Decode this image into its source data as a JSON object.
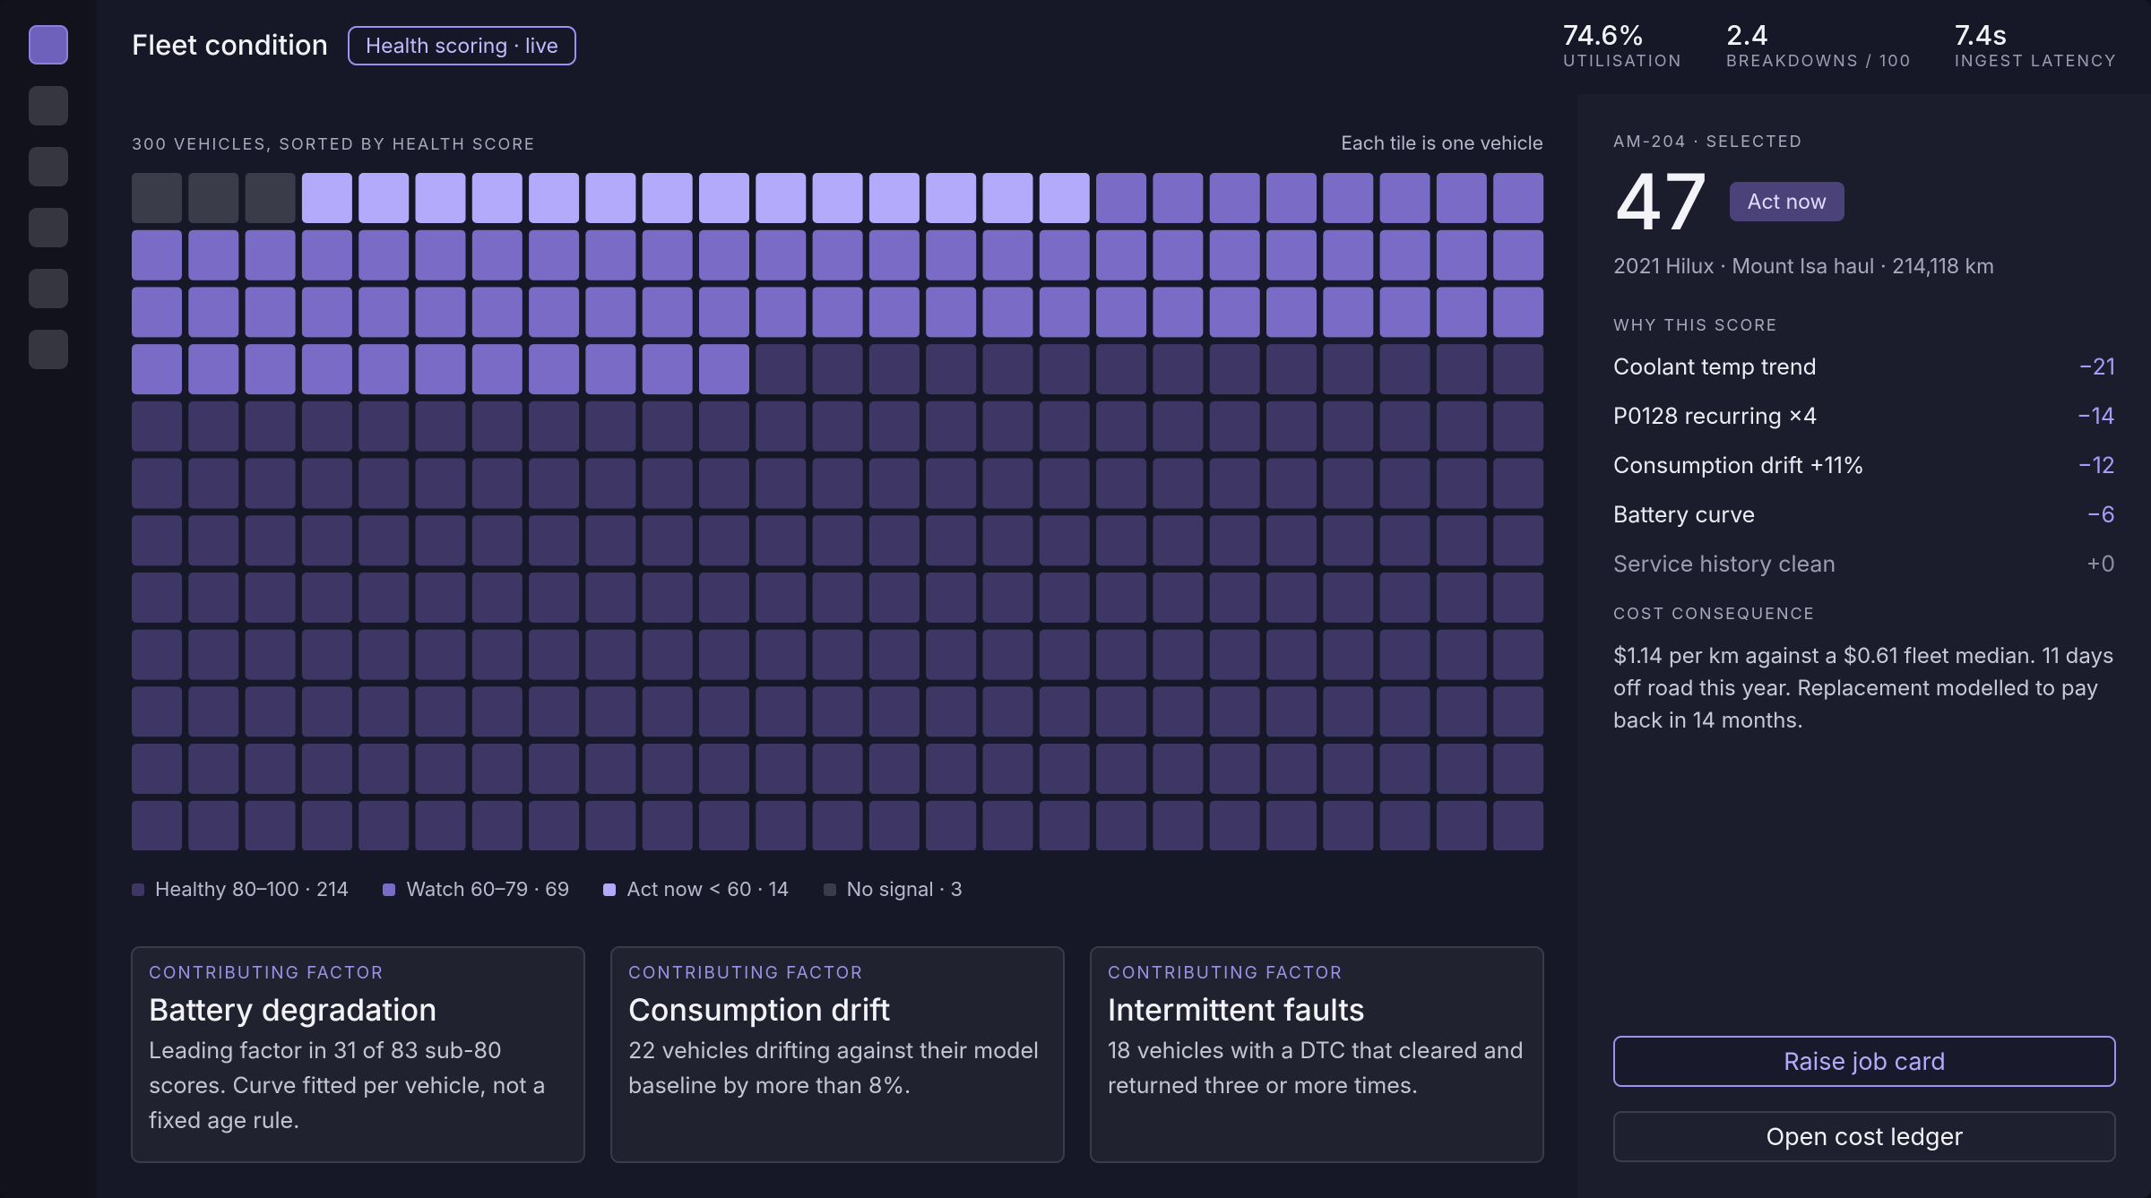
{
  "header": {
    "title": "Fleet condition",
    "badge": "Health scoring · live",
    "stats": [
      {
        "value": "74.6%",
        "label": "UTILISATION"
      },
      {
        "value": "2.4",
        "label": "BREAKDOWNS / 100"
      },
      {
        "value": "7.4s",
        "label": "INGEST LATENCY"
      }
    ]
  },
  "waffle": {
    "caption": "300 VEHICLES, SORTED BY HEALTH SCORE",
    "note": "Each tile is one vehicle",
    "columns": 25,
    "legend": [
      {
        "label": "Healthy 80–100 · 214",
        "count": 214,
        "color": "#3e3765"
      },
      {
        "label": "Watch 60–79 · 69",
        "count": 69,
        "color": "#7a6cc6"
      },
      {
        "label": "Act now < 60 · 14",
        "count": 14,
        "color": "#b4aafb"
      },
      {
        "label": "No signal · 3",
        "count": 3,
        "color": "#3b3c49"
      }
    ]
  },
  "cards": [
    {
      "kicker": "CONTRIBUTING FACTOR",
      "title": "Battery degradation",
      "body": "Leading factor in 31 of 83 sub-80 scores. Curve fitted per vehicle, not a fixed age rule."
    },
    {
      "kicker": "CONTRIBUTING FACTOR",
      "title": "Consumption drift",
      "body": "22 vehicles drifting against their model baseline by more than 8%."
    },
    {
      "kicker": "CONTRIBUTING FACTOR",
      "title": "Intermittent faults",
      "body": "18 vehicles with a DTC that cleared and returned three or more times."
    }
  ],
  "selected": {
    "label": "AM-204 · SELECTED",
    "score": 47,
    "badge": "Act now",
    "subtitle": "2021 Hilux · Mount Isa haul · 214,118 km",
    "why_heading": "WHY THIS SCORE",
    "factors": [
      {
        "name": "Coolant temp trend",
        "delta": "−21"
      },
      {
        "name": "P0128 recurring ×4",
        "delta": "−14"
      },
      {
        "name": "Consumption drift +11%",
        "delta": "−12"
      },
      {
        "name": "Battery curve",
        "delta": "−6"
      },
      {
        "name": "Service history clean",
        "delta": "+0"
      }
    ],
    "cost_heading": "COST CONSEQUENCE",
    "cost_text": "$1.14 per km against a $0.61 fleet median. 11 days off road this year. Replacement modelled to pay back in 14 months.",
    "actions": [
      "Raise job card",
      "Open cost ledger"
    ]
  }
}
